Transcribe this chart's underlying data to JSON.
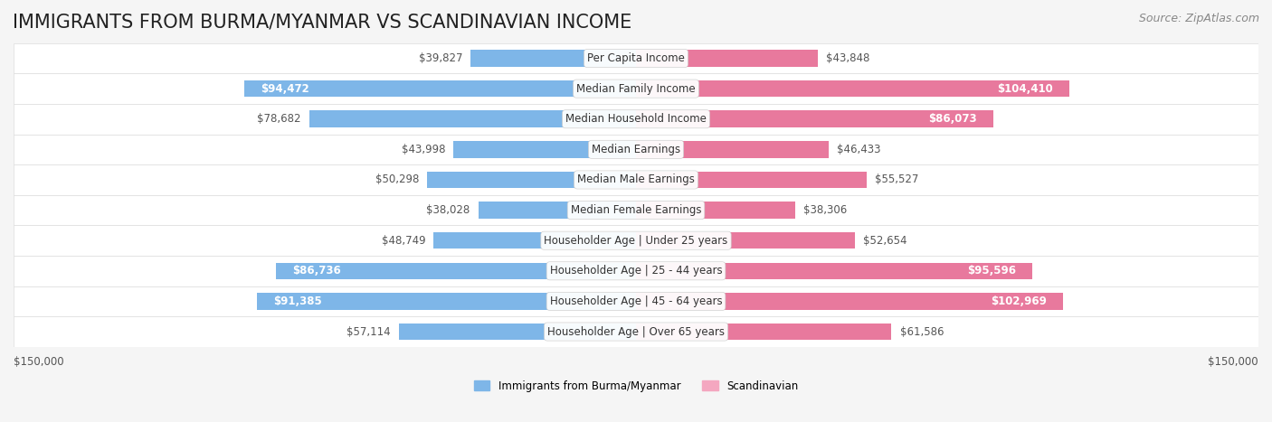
{
  "title": "IMMIGRANTS FROM BURMA/MYANMAR VS SCANDINAVIAN INCOME",
  "source": "Source: ZipAtlas.com",
  "categories": [
    "Per Capita Income",
    "Median Family Income",
    "Median Household Income",
    "Median Earnings",
    "Median Male Earnings",
    "Median Female Earnings",
    "Householder Age | Under 25 years",
    "Householder Age | 25 - 44 years",
    "Householder Age | 45 - 64 years",
    "Householder Age | Over 65 years"
  ],
  "burma_values": [
    39827,
    94472,
    78682,
    43998,
    50298,
    38028,
    48749,
    86736,
    91385,
    57114
  ],
  "scand_values": [
    43848,
    104410,
    86073,
    46433,
    55527,
    38306,
    52654,
    95596,
    102969,
    61586
  ],
  "burma_color": "#7EB6E8",
  "burma_color_dark": "#5B9BD5",
  "scand_color": "#F4A7C0",
  "scand_color_dark": "#E8799D",
  "max_value": 150000,
  "xlabel_left": "$150,000",
  "xlabel_right": "$150,000",
  "legend_burma": "Immigrants from Burma/Myanmar",
  "legend_scand": "Scandinavian",
  "bg_color": "#f5f5f5",
  "row_bg_color": "#ffffff",
  "bar_height": 0.55,
  "title_fontsize": 15,
  "label_fontsize": 8.5,
  "value_fontsize": 8.5,
  "source_fontsize": 9
}
